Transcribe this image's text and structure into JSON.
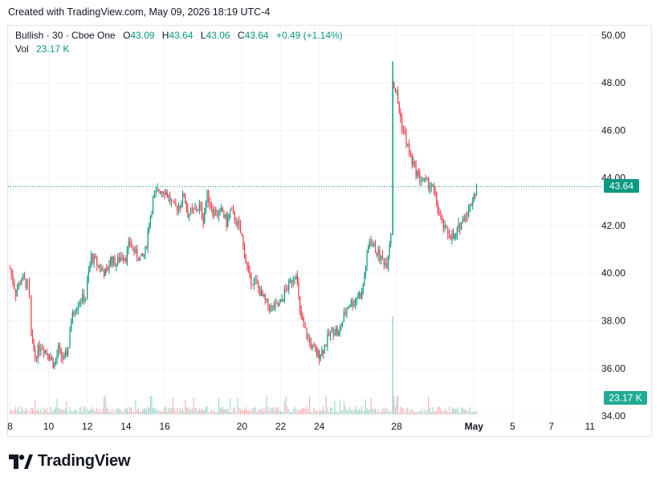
{
  "caption": "Created with TradingView.com, May 09, 2026 18:19 UTC-4",
  "legend": {
    "symbol": "Bullish · 30 · Cboe One",
    "open_label": "O",
    "open": "43.09",
    "high_label": "H",
    "high": "43.64",
    "low_label": "L",
    "low": "43.06",
    "close_label": "C",
    "close": "43.64",
    "change": "+0.49 (+1.14%)",
    "vol_label": "Vol",
    "vol": "23.17 K"
  },
  "last_price_tag": "43.64",
  "volume_tag": "23.17 K",
  "brand": "TradingView",
  "colors": {
    "up": "#089981",
    "down": "#f23645",
    "grid": "#f0f3fa",
    "text": "#131722"
  },
  "chart_data": {
    "type": "candlestick",
    "timeframe": "30",
    "y_ticks": [
      "34.00",
      "36.00",
      "38.00",
      "40.00",
      "42.00",
      "44.00",
      "46.00",
      "48.00",
      "50.00"
    ],
    "ylim": [
      33.9,
      50.3
    ],
    "x_ticks": [
      {
        "label": "8",
        "day": 8
      },
      {
        "label": "10",
        "day": 10
      },
      {
        "label": "12",
        "day": 12
      },
      {
        "label": "14",
        "day": 14
      },
      {
        "label": "16",
        "day": 16
      },
      {
        "label": "20",
        "day": 20
      },
      {
        "label": "22",
        "day": 22
      },
      {
        "label": "24",
        "day": 24
      },
      {
        "label": "28",
        "day": 28
      },
      {
        "label": "May",
        "day": 32
      },
      {
        "label": "5",
        "day": 34
      },
      {
        "label": "7",
        "day": 36
      },
      {
        "label": "11",
        "day": 38
      }
    ],
    "last_price": 43.64,
    "price_path_day_close": [
      [
        8.0,
        40.2
      ],
      [
        8.3,
        39.2
      ],
      [
        8.6,
        39.8
      ],
      [
        8.9,
        39.5
      ],
      [
        9.0,
        38.9
      ],
      [
        9.1,
        37.3
      ],
      [
        9.3,
        36.5
      ],
      [
        9.6,
        37.0
      ],
      [
        9.9,
        36.7
      ],
      [
        10.1,
        36.5
      ],
      [
        10.3,
        36.1
      ],
      [
        10.5,
        36.8
      ],
      [
        10.8,
        36.3
      ],
      [
        11.0,
        36.9
      ],
      [
        11.1,
        37.7
      ],
      [
        11.3,
        38.4
      ],
      [
        11.6,
        38.9
      ],
      [
        11.9,
        39.0
      ],
      [
        12.0,
        39.6
      ],
      [
        12.2,
        40.7
      ],
      [
        12.5,
        40.4
      ],
      [
        12.8,
        40.1
      ],
      [
        13.0,
        40.0
      ],
      [
        13.2,
        40.6
      ],
      [
        13.5,
        40.4
      ],
      [
        13.8,
        40.8
      ],
      [
        14.0,
        40.7
      ],
      [
        14.2,
        41.3
      ],
      [
        14.5,
        40.8
      ],
      [
        14.8,
        40.6
      ],
      [
        15.0,
        40.9
      ],
      [
        15.2,
        42.1
      ],
      [
        15.4,
        43.1
      ],
      [
        15.7,
        43.5
      ],
      [
        16.0,
        43.5
      ],
      [
        16.2,
        43.2
      ],
      [
        16.5,
        42.7
      ],
      [
        16.8,
        42.9
      ],
      [
        17.0,
        43.3
      ],
      [
        17.2,
        42.5
      ],
      [
        17.5,
        42.6
      ],
      [
        17.8,
        42.8
      ],
      [
        18.0,
        42.3
      ],
      [
        18.2,
        43.3
      ],
      [
        18.5,
        42.6
      ],
      [
        18.8,
        42.5
      ],
      [
        19.0,
        42.6
      ],
      [
        19.2,
        42.1
      ],
      [
        19.4,
        42.6
      ],
      [
        19.7,
        42.2
      ],
      [
        20.0,
        41.5
      ],
      [
        20.2,
        40.5
      ],
      [
        20.4,
        39.8
      ],
      [
        20.7,
        39.6
      ],
      [
        21.0,
        39.1
      ],
      [
        21.2,
        38.8
      ],
      [
        21.5,
        38.5
      ],
      [
        21.8,
        38.6
      ],
      [
        22.0,
        38.7
      ],
      [
        22.2,
        39.2
      ],
      [
        22.5,
        39.6
      ],
      [
        22.8,
        40.1
      ],
      [
        23.0,
        38.3
      ],
      [
        23.2,
        37.7
      ],
      [
        23.5,
        37.1
      ],
      [
        23.8,
        36.6
      ],
      [
        24.0,
        36.6
      ],
      [
        24.2,
        36.8
      ],
      [
        24.5,
        37.4
      ],
      [
        24.8,
        37.7
      ],
      [
        25.0,
        37.4
      ],
      [
        25.2,
        38.0
      ],
      [
        25.5,
        38.7
      ],
      [
        25.8,
        38.8
      ],
      [
        26.0,
        39.1
      ],
      [
        26.2,
        39.1
      ],
      [
        26.4,
        40.3
      ],
      [
        26.6,
        41.4
      ],
      [
        26.9,
        41.0
      ],
      [
        27.2,
        40.6
      ],
      [
        27.5,
        40.4
      ],
      [
        27.7,
        41.8
      ],
      [
        27.8,
        48.1
      ],
      [
        28.0,
        47.5
      ],
      [
        28.2,
        46.5
      ],
      [
        28.5,
        45.5
      ],
      [
        28.8,
        44.7
      ],
      [
        29.0,
        44.3
      ],
      [
        29.2,
        44.0
      ],
      [
        29.5,
        43.8
      ],
      [
        29.8,
        43.7
      ],
      [
        30.0,
        43.2
      ],
      [
        30.2,
        42.4
      ],
      [
        30.5,
        41.8
      ],
      [
        30.8,
        41.6
      ],
      [
        31.0,
        41.4
      ],
      [
        31.2,
        41.9
      ],
      [
        31.5,
        42.4
      ],
      [
        31.8,
        42.8
      ],
      [
        32.0,
        43.3
      ],
      [
        32.2,
        43.64
      ]
    ],
    "volume_spike": {
      "day": 27.8,
      "relative": 1.0
    }
  }
}
